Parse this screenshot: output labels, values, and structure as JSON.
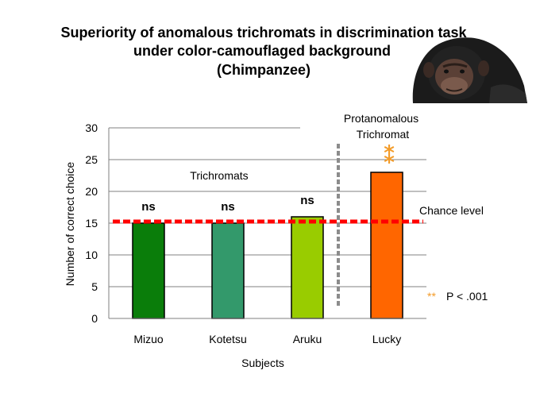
{
  "chart_data": {
    "type": "bar",
    "title_lines": [
      "Superiority of anomalous trichromats in discrimination task",
      "under color-camouflaged background",
      "(Chimpanzee)"
    ],
    "categories": [
      "Mizuo",
      "Kotetsu",
      "Aruku",
      "Lucky"
    ],
    "values": [
      15,
      15,
      16,
      23
    ],
    "bar_colors": [
      "#0a7d0a",
      "#33996b",
      "#99cc00",
      "#ff6600"
    ],
    "significance": [
      "ns",
      "ns",
      "ns",
      "**"
    ],
    "xlabel": "Subjects",
    "ylabel": "Number of correct choice",
    "ylim": [
      0,
      30
    ],
    "yticks": [
      0,
      5,
      10,
      15,
      20,
      25,
      30
    ],
    "chance_level": {
      "label": "Chance level",
      "value": 15.25,
      "color": "#ff0000"
    },
    "group_labels": {
      "left": "Trichromats",
      "right_line1": "Protanomalous",
      "right_line2": "Trichromat"
    },
    "sig_legend": {
      "marker": "**",
      "text": "P < .001"
    },
    "grid": true,
    "picture": "chimpanzee-photo"
  }
}
